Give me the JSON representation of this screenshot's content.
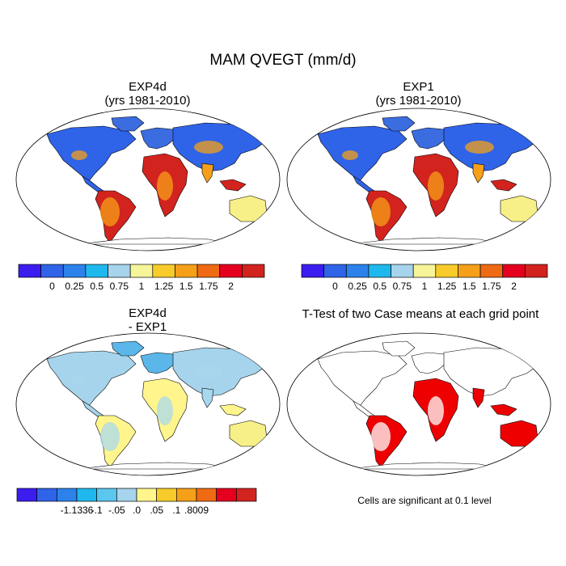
{
  "title": "MAM QVEGT (mm/d)",
  "colors": {
    "land_outline": "#000000",
    "ocean": "#ffffff"
  },
  "panels": [
    {
      "id": "exp4d",
      "title_line1": "EXP4d",
      "title_line2": "(yrs 1981-2010)",
      "fields": {
        "high": "#d2231e",
        "mid": "#f5a018",
        "low": "#3b6ce0",
        "base": "#2f63e8",
        "alt": "#f7ef88"
      }
    },
    {
      "id": "exp1",
      "title_line1": "EXP1",
      "title_line2": "(yrs 1981-2010)",
      "fields": {
        "high": "#d2231e",
        "mid": "#f5a018",
        "low": "#3b6ce0",
        "base": "#2f63e8",
        "alt": "#f7ef88"
      }
    },
    {
      "id": "diff",
      "title_line1": "EXP4d",
      "title_line2": "- EXP1",
      "fields": {
        "high": "#fff58c",
        "mid": "#a8d8ee",
        "low": "#5bb6ea",
        "base": "#a6d4ec",
        "alt": "#f7ef88"
      }
    },
    {
      "id": "ttest",
      "title_line1": "T-Test of two Case means at each grid point",
      "title_line2": "",
      "fields": {
        "high": "#ee0000",
        "mid": "#ee0000",
        "low": "#ffffff",
        "base": "#ffffff",
        "alt": "#ee0000"
      }
    }
  ],
  "colorbar_main": {
    "colors": [
      "#3b1df0",
      "#2f63e8",
      "#2c82ea",
      "#1fb8ee",
      "#a6d4ec",
      "#f7f59a",
      "#f7cc2a",
      "#f5a018",
      "#ef6a14",
      "#e4001e",
      "#d2231e"
    ],
    "labels": [
      "0",
      "0.25",
      "0.5",
      "0.75",
      "1",
      "1.25",
      "1.5",
      "1.75",
      "2"
    ]
  },
  "colorbar_diff": {
    "colors": [
      "#3b1df0",
      "#2f63e8",
      "#2c82ea",
      "#1fb8ee",
      "#5bc6ee",
      "#a6d4ec",
      "#fff58c",
      "#f7cc2a",
      "#f5a018",
      "#ef6a14",
      "#e4001e",
      "#d2231e"
    ],
    "labels": [
      "-1.1336",
      "-.1",
      "-.05",
      ".0",
      ".05",
      ".1",
      ".8009"
    ]
  },
  "note": "Cells are significant at 0.1 level"
}
